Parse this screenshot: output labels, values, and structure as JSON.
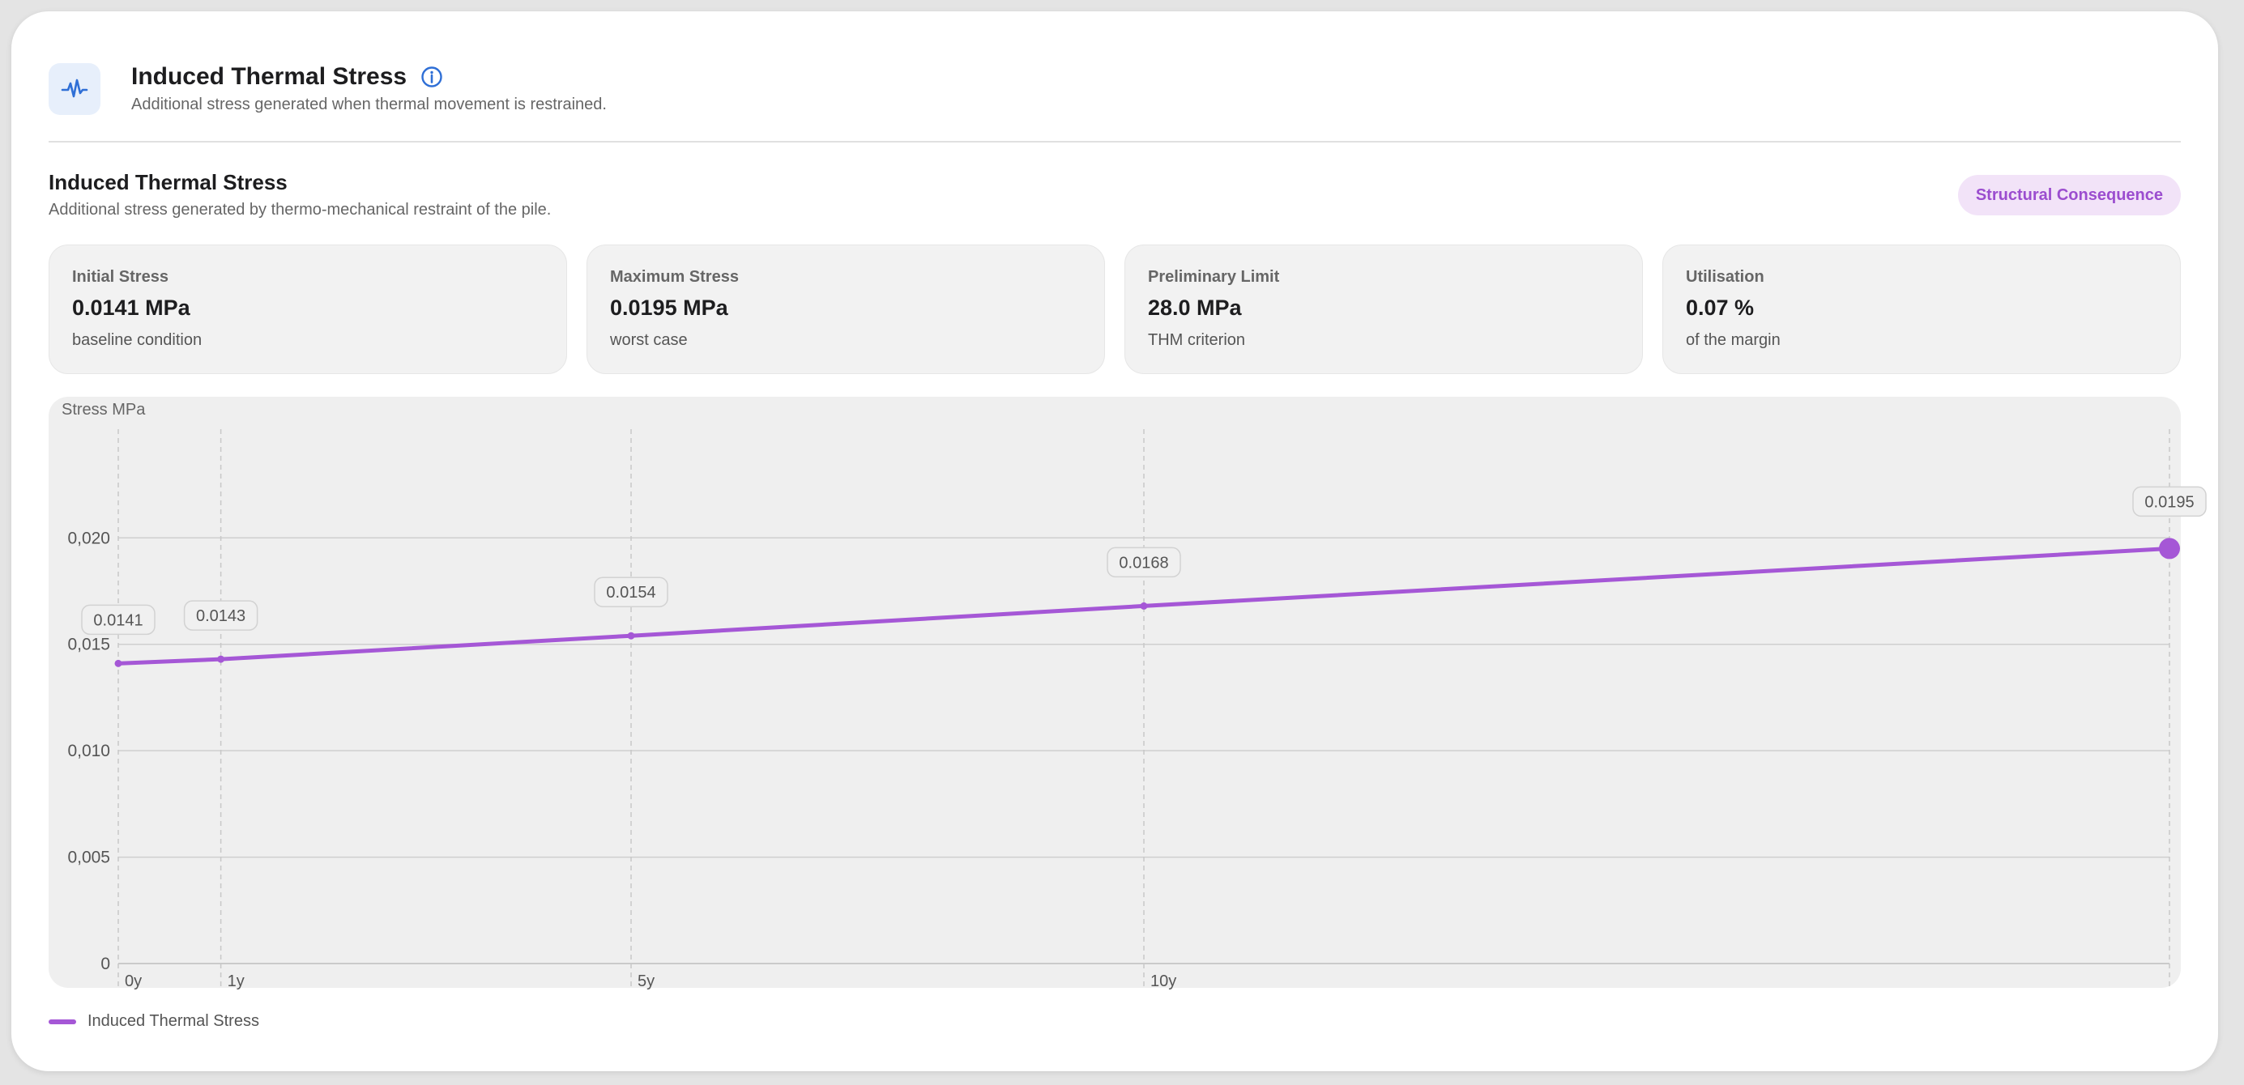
{
  "header": {
    "title": "Induced Thermal Stress",
    "subtitle": "Additional stress generated when thermal movement is restrained.",
    "icon": "pulse-icon",
    "info_icon": "info-icon"
  },
  "section": {
    "title": "Induced Thermal Stress",
    "subtitle": "Additional stress generated by thermo-mechanical restraint of the pile.",
    "badge": "Structural Consequence"
  },
  "stats": [
    {
      "label": "Initial Stress",
      "value": "0.0141 MPa",
      "note": "baseline condition"
    },
    {
      "label": "Maximum Stress",
      "value": "0.0195 MPa",
      "note": "worst case"
    },
    {
      "label": "Preliminary Limit",
      "value": "28.0 MPa",
      "note": "THM criterion"
    },
    {
      "label": "Utilisation",
      "value": "0.07 %",
      "note": "of the margin"
    }
  ],
  "colors": {
    "accent": "#a557d6",
    "badge_bg": "#f2e3f8",
    "icon_blue": "#2f6fd6"
  },
  "chart_data": {
    "type": "line",
    "ylabel": "Stress MPa",
    "ylim": [
      0,
      0.0245
    ],
    "yticks": [
      0,
      0.005,
      0.01,
      0.015,
      0.02
    ],
    "ytick_labels": [
      "0",
      "0,005",
      "0,010",
      "0,015",
      "0,020"
    ],
    "x": [
      0,
      1,
      5,
      10,
      20
    ],
    "xtick_labels": [
      "0y",
      "1y",
      "5y",
      "10y",
      ""
    ],
    "series": [
      {
        "name": "Induced Thermal Stress",
        "values": [
          0.0141,
          0.0143,
          0.0154,
          0.0168,
          0.0195
        ],
        "data_labels": [
          "0.0141",
          "0.0143",
          "0.0154",
          "0.0168",
          "0.0195"
        ]
      }
    ],
    "grid": true,
    "legend_position": "bottom-left"
  }
}
